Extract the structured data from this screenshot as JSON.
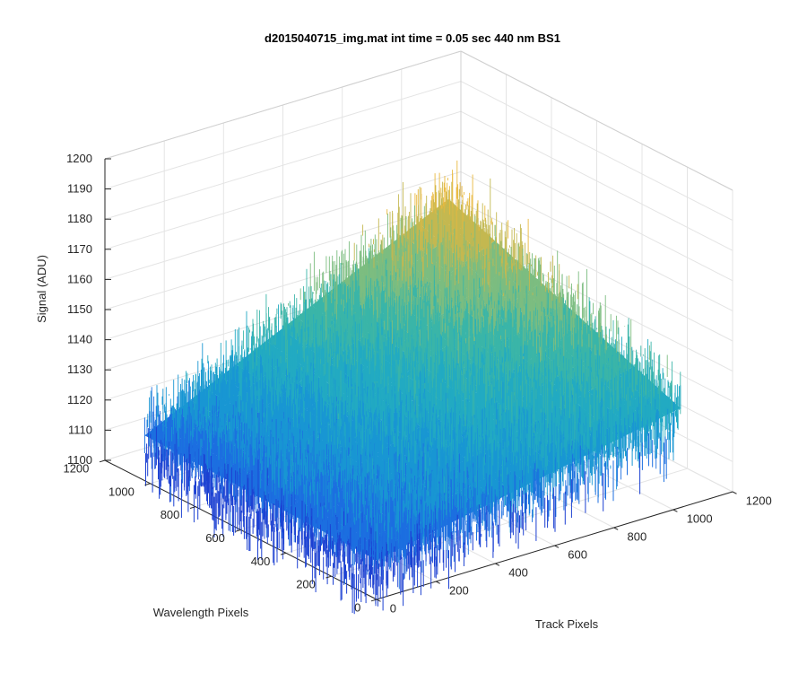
{
  "chart_data": {
    "type": "surface3d",
    "title": "d2015040715_img.mat int time = 0.05 sec  440 nm BS1",
    "xlabel": "Track Pixels",
    "ylabel": "Wavelength Pixels",
    "zlabel": "Signal (ADU)",
    "xlim": [
      0,
      1200
    ],
    "ylim": [
      0,
      1200
    ],
    "zlim": [
      1100,
      1200
    ],
    "x_ticks": [
      "0",
      "200",
      "400",
      "600",
      "800",
      "1000",
      "1200"
    ],
    "y_ticks": [
      "0",
      "200",
      "400",
      "600",
      "800",
      "1000",
      "1200"
    ],
    "z_ticks": [
      "1100",
      "1110",
      "1120",
      "1130",
      "1140",
      "1150",
      "1160",
      "1170",
      "1180",
      "1190",
      "1200"
    ],
    "data_extent": {
      "x": [
        0,
        1024
      ],
      "y": [
        0,
        1024
      ]
    },
    "corner_signal": {
      "x0_y0": 1113,
      "x1024_y0": 1133,
      "x0_y1024": 1115,
      "x1024_y1024": 1163
    },
    "noise_amplitude_adu": 9,
    "colormap": [
      "#1c40d2",
      "#1c6fe0",
      "#1996d3",
      "#22aac2",
      "#3ab5a8",
      "#7cbd80",
      "#c4b850",
      "#e9b93e"
    ],
    "grid": true
  }
}
